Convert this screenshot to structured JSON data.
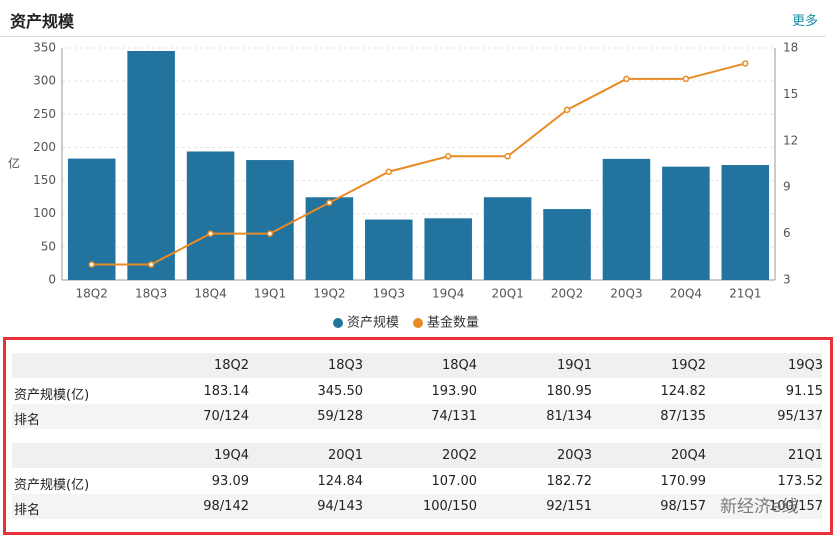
{
  "header": {
    "title": "资产规模",
    "more": "更多"
  },
  "chart_data": {
    "type": "bar",
    "y_label": "亿",
    "categories": [
      "18Q2",
      "18Q3",
      "18Q4",
      "19Q1",
      "19Q2",
      "19Q3",
      "19Q4",
      "20Q1",
      "20Q2",
      "20Q3",
      "20Q4",
      "21Q1"
    ],
    "series": [
      {
        "name": "资产规模",
        "type": "bar",
        "color": "#23739f",
        "values": [
          183.14,
          345.5,
          193.9,
          180.95,
          124.82,
          91.15,
          93.09,
          124.84,
          107.0,
          182.72,
          170.99,
          173.52
        ]
      },
      {
        "name": "基金数量",
        "type": "line",
        "axis": "y2",
        "color": "#e98b24",
        "values": [
          4,
          4,
          6,
          6,
          8,
          10,
          11,
          11,
          14,
          16,
          16,
          17
        ]
      }
    ],
    "ylim": [
      0,
      350
    ],
    "yticks": [
      0,
      50,
      100,
      150,
      200,
      250,
      300,
      350
    ],
    "y2lim": [
      3,
      18
    ],
    "y2ticks": [
      3,
      6,
      9,
      12,
      15,
      18
    ],
    "grid": true,
    "legend": "bottom"
  },
  "table": {
    "blocks": [
      {
        "columns": [
          "18Q2",
          "18Q3",
          "18Q4",
          "19Q1",
          "19Q2",
          "19Q3"
        ],
        "rows": [
          {
            "label": "资产规模(亿)",
            "values": [
              "183.14",
              "345.50",
              "193.90",
              "180.95",
              "124.82",
              "91.15"
            ]
          },
          {
            "label": "排名",
            "values": [
              "70/124",
              "59/128",
              "74/131",
              "81/134",
              "87/135",
              "95/137"
            ]
          }
        ]
      },
      {
        "columns": [
          "19Q4",
          "20Q1",
          "20Q2",
          "20Q3",
          "20Q4",
          "21Q1"
        ],
        "rows": [
          {
            "label": "资产规模(亿)",
            "values": [
              "93.09",
              "124.84",
              "107.00",
              "182.72",
              "170.99",
              "173.52"
            ]
          },
          {
            "label": "排名",
            "values": [
              "98/142",
              "94/143",
              "100/150",
              "92/151",
              "98/157",
              "100/157"
            ]
          }
        ]
      }
    ]
  },
  "watermark": "新经济e线"
}
